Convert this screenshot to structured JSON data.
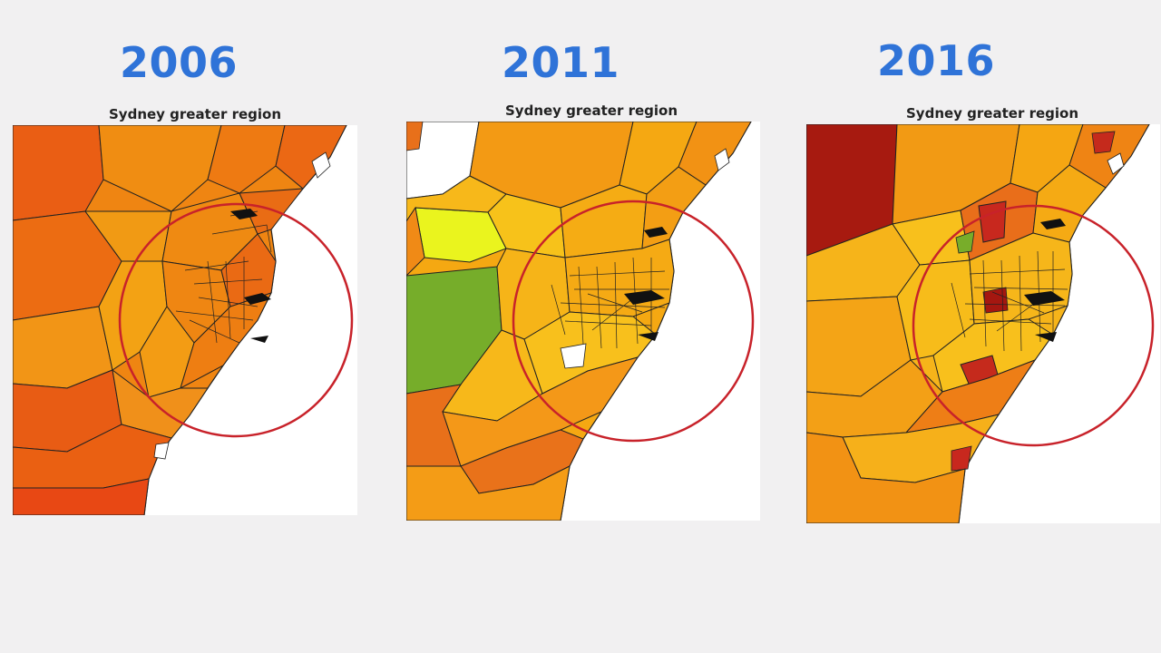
{
  "panels": [
    {
      "year": "2006",
      "map_title": "Sydney greater region",
      "highlight_color": "#c8222a",
      "fill_palette": [
        "#f08a10",
        "#ec6a10",
        "#e85a12",
        "#f3a012",
        "#f7b615"
      ],
      "highlight_note": "red circle around central Sydney"
    },
    {
      "year": "2011",
      "map_title": "Sydney greater region",
      "highlight_color": "#c8222a",
      "fill_palette": [
        "#f5a812",
        "#f7c21a",
        "#f3921a",
        "#e8701a",
        "#e9f71c",
        "#78ad2a"
      ],
      "highlight_note": "red circle around central Sydney"
    },
    {
      "year": "2016",
      "map_title": "Sydney greater region",
      "highlight_color": "#c8222a",
      "fill_palette": [
        "#f6b41a",
        "#f29a14",
        "#e9711a",
        "#c8281e",
        "#a51710",
        "#78ad2a"
      ],
      "highlight_note": "red circle around central Sydney"
    }
  ]
}
